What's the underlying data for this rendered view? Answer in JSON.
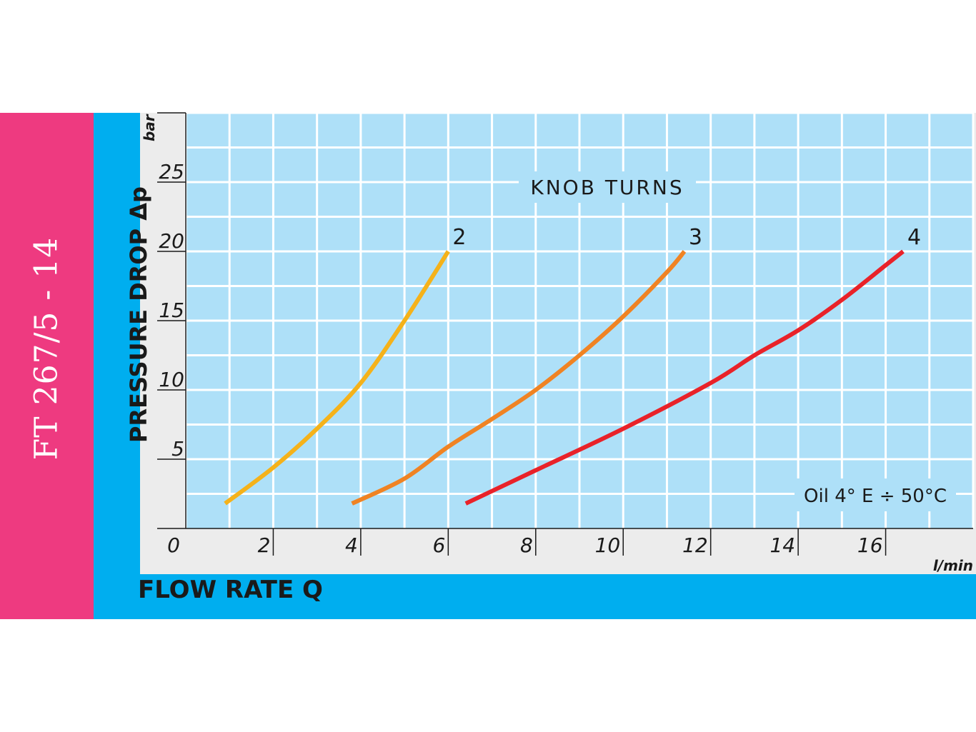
{
  "sidebar": {
    "code": "FT 267/5 - 14"
  },
  "chart_data": {
    "type": "line",
    "xlabel": "FLOW RATE Q",
    "ylabel": "PRESSURE DROP Δp",
    "x_unit": "l/min",
    "y_unit": "bar",
    "xlim": [
      0,
      18
    ],
    "ylim": [
      0,
      30
    ],
    "x_ticks": [
      0,
      2,
      4,
      6,
      8,
      10,
      12,
      14,
      16
    ],
    "y_ticks": [
      5,
      10,
      15,
      20,
      25
    ],
    "x_tick_labels": [
      "0",
      "2",
      "4",
      "6",
      "8",
      "10",
      "12",
      "14",
      "16"
    ],
    "y_tick_labels": [
      "5",
      "10",
      "15",
      "20",
      "25"
    ],
    "grid": true,
    "legend_title": "KNOB TURNS",
    "annotation": "Oil 4° E ÷ 50°C",
    "series": [
      {
        "name": "2",
        "color": "#f5b21a",
        "x": [
          0.9,
          2.0,
          3.0,
          4.0,
          5.0,
          6.0
        ],
        "y": [
          1.8,
          4.4,
          7.2,
          10.5,
          15.0,
          20.0
        ]
      },
      {
        "name": "3",
        "color": "#f08323",
        "x": [
          3.8,
          5.0,
          6.0,
          7.0,
          8.0,
          9.0,
          10.0,
          11.0,
          11.4
        ],
        "y": [
          1.8,
          3.6,
          5.9,
          7.9,
          10.0,
          12.5,
          15.3,
          18.5,
          20.0
        ]
      },
      {
        "name": "4",
        "color": "#e92229",
        "x": [
          6.4,
          8.0,
          10.0,
          12.0,
          13.0,
          14.0,
          15.0,
          16.0,
          16.4
        ],
        "y": [
          1.8,
          4.2,
          7.2,
          10.5,
          12.5,
          14.3,
          16.5,
          19.0,
          20.0
        ]
      }
    ]
  }
}
